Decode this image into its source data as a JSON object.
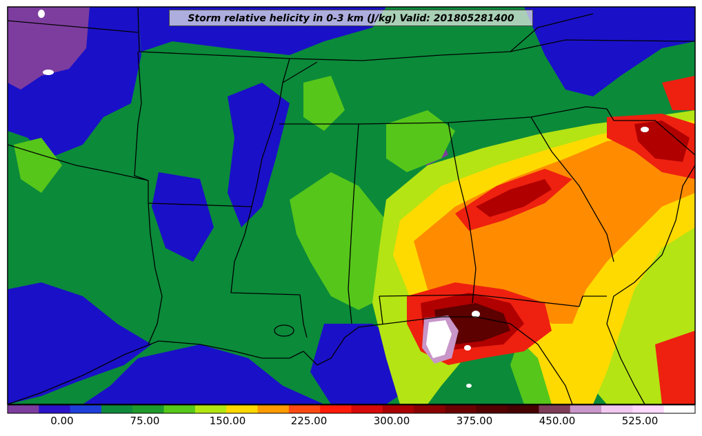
{
  "title": "Storm relative helicity in 0-3 km (J/kg) Valid: 201805281400",
  "colorbar": {
    "ticks": [
      "0.00",
      "75.00",
      "150.00",
      "225.00",
      "300.00",
      "375.00",
      "450.00",
      "525.00"
    ],
    "colors": [
      "#7d3d9e",
      "#2a12c8",
      "#1d3fd8",
      "#0f8a3c",
      "#1f9a2c",
      "#57c81a",
      "#b2e612",
      "#ffd800",
      "#ff9a00",
      "#ff4a12",
      "#ff1a0a",
      "#d60a0a",
      "#aa0000",
      "#8a0000",
      "#6a0000",
      "#520000",
      "#450000",
      "#7d3d58",
      "#c896c8",
      "#f0c8f0",
      "#ffd8ff",
      "#ffffff"
    ]
  },
  "palette": {
    "purple": "#7d3d9e",
    "blue": "#1a10c8",
    "darkgreen": "#0b8a3a",
    "green": "#2ea828",
    "lightgreen": "#56c61a",
    "yellowgreen": "#b4e414",
    "yellow": "#ffda00",
    "orange": "#ff8c00",
    "red": "#ee2010",
    "darkred": "#b00000",
    "maroon": "#5c0000",
    "mauve": "#c896c8",
    "white": "#ffffff"
  }
}
